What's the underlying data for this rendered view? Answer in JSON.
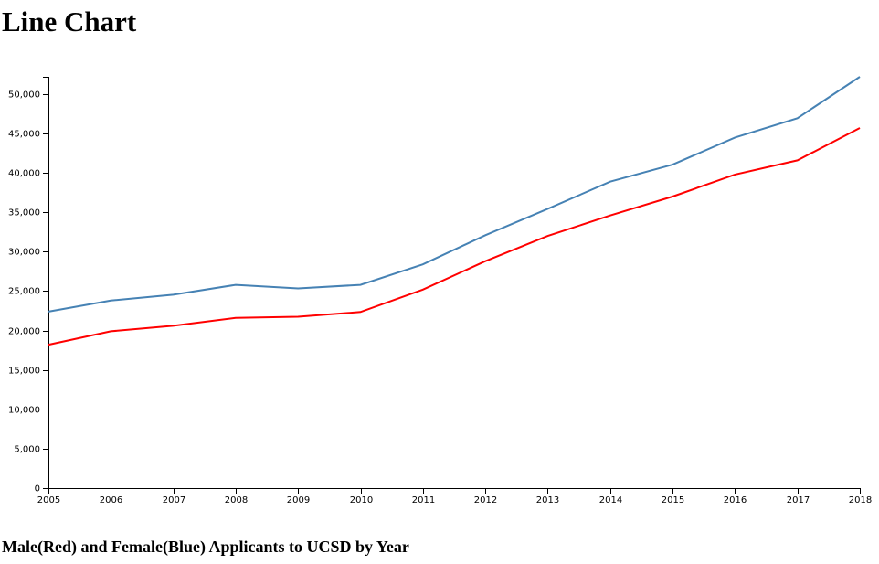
{
  "page": {
    "title": "Line Chart",
    "caption": "Male(Red) and Female(Blue) Applicants to UCSD by Year"
  },
  "chart_data": {
    "type": "line",
    "title": "",
    "xlabel": "",
    "ylabel": "",
    "x": [
      2005,
      2006,
      2007,
      2008,
      2009,
      2010,
      2011,
      2012,
      2013,
      2014,
      2015,
      2016,
      2017,
      2018
    ],
    "x_tick_labels": [
      "2005",
      "2006",
      "2007",
      "2008",
      "2009",
      "2010",
      "2011",
      "2012",
      "2013",
      "2014",
      "2015",
      "2016",
      "2017",
      "2018"
    ],
    "y_ticks": [
      0,
      5000,
      10000,
      15000,
      20000,
      25000,
      30000,
      35000,
      40000,
      45000,
      50000
    ],
    "y_tick_labels": [
      "0",
      "5,000",
      "10,000",
      "15,000",
      "20,000",
      "25,000",
      "30,000",
      "35,000",
      "40,000",
      "45,000",
      "50,000"
    ],
    "xlim": [
      2005,
      2018
    ],
    "ylim": [
      0,
      52200
    ],
    "grid": false,
    "legend": "none",
    "series": [
      {
        "color": "#ff0000",
        "values": [
          18200,
          19900,
          20600,
          21600,
          21750,
          22350,
          25200,
          28800,
          32000,
          34600,
          37000,
          39800,
          41600,
          45700
        ]
      },
      {
        "color": "#4682b4",
        "values": [
          22400,
          23800,
          24550,
          25800,
          25350,
          25800,
          28400,
          32100,
          35450,
          38900,
          41050,
          44500,
          46950,
          52200
        ]
      }
    ]
  }
}
